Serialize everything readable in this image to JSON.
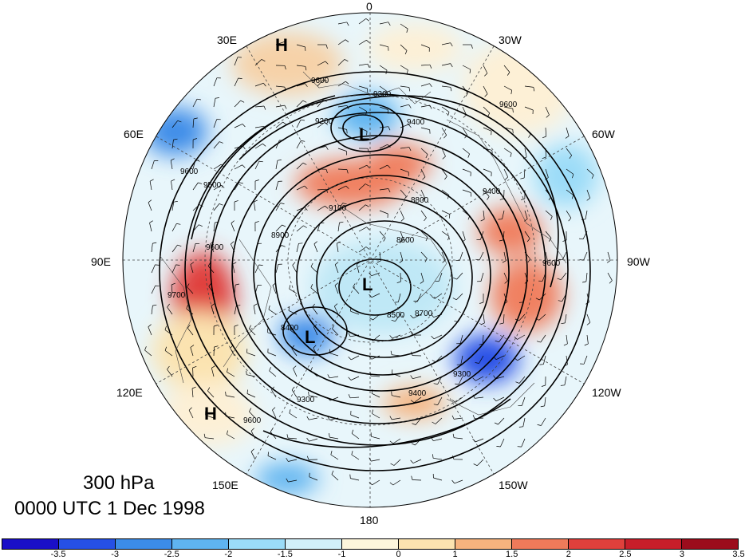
{
  "map": {
    "level_label": "300 hPa",
    "valid_time": "0000 UTC 1 Dec 1998",
    "longitude_labels": [
      {
        "name": "lon-0",
        "text": "0"
      },
      {
        "name": "lon-30w",
        "text": "30W"
      },
      {
        "name": "lon-60w",
        "text": "60W"
      },
      {
        "name": "lon-90w",
        "text": "90W"
      },
      {
        "name": "lon-120w",
        "text": "120W"
      },
      {
        "name": "lon-150w",
        "text": "150W"
      },
      {
        "name": "lon-180",
        "text": "180"
      },
      {
        "name": "lon-150e",
        "text": "150E"
      },
      {
        "name": "lon-120e",
        "text": "120E"
      },
      {
        "name": "lon-90e",
        "text": "90E"
      },
      {
        "name": "lon-60e",
        "text": "60E"
      },
      {
        "name": "lon-30e",
        "text": "30E"
      }
    ],
    "pressure_centers": [
      {
        "name": "high-30e",
        "text": "H"
      },
      {
        "name": "low-europe",
        "text": "L"
      },
      {
        "name": "low-pole",
        "text": "L"
      },
      {
        "name": "low-siberia",
        "text": "L"
      },
      {
        "name": "high-pacific",
        "text": "H"
      }
    ],
    "contour_labels": [
      "9600",
      "9300",
      "9200",
      "9400",
      "9500",
      "9600",
      "9100",
      "8800",
      "8900",
      "8600",
      "8700",
      "8500",
      "8400",
      "9300",
      "9400",
      "9600",
      "9700",
      "9600",
      "9300",
      "9400",
      "9600",
      "9600"
    ]
  },
  "colorbar": {
    "colors": [
      "#1a0fc8",
      "#2650e6",
      "#3c8ce8",
      "#5fb4f0",
      "#9bdcf8",
      "#d2f0fa",
      "#fdf6dc",
      "#fbe3b0",
      "#f6b37e",
      "#ef7a5a",
      "#e0403c",
      "#c81e2a",
      "#9c0c1c"
    ],
    "ticks": [
      "-3.5",
      "-3",
      "-2.5",
      "-2",
      "-1.5",
      "-1",
      "0",
      "1",
      "1.5",
      "2",
      "2.5",
      "3",
      "3.5"
    ]
  }
}
